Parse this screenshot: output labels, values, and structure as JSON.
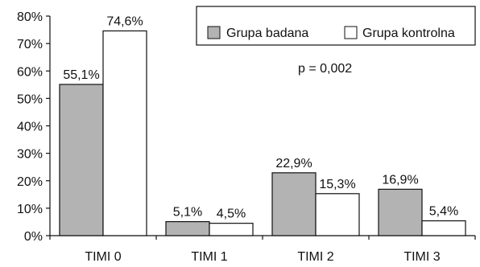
{
  "chart_data": {
    "type": "bar",
    "categories": [
      "TIMI 0",
      "TIMI 1",
      "TIMI 2",
      "TIMI 3"
    ],
    "series": [
      {
        "name": "Grupa badana",
        "values": [
          55.1,
          5.1,
          22.9,
          16.9
        ],
        "labels": [
          "55,1%",
          "5,1%",
          "22,9%",
          "16,9%"
        ],
        "color": "#b3b3b3"
      },
      {
        "name": "Grupa kontrolna",
        "values": [
          74.6,
          4.5,
          15.3,
          5.4
        ],
        "labels": [
          "74,6%",
          "4,5%",
          "15,3%",
          "5,4%"
        ],
        "color": "#ffffff"
      }
    ],
    "y_ticks": [
      "0%",
      "10%",
      "20%",
      "30%",
      "40%",
      "50%",
      "60%",
      "70%",
      "80%"
    ],
    "ylim": [
      0,
      80
    ],
    "legend_position": "top-right",
    "annotation": "p = 0,002",
    "grid": false
  }
}
